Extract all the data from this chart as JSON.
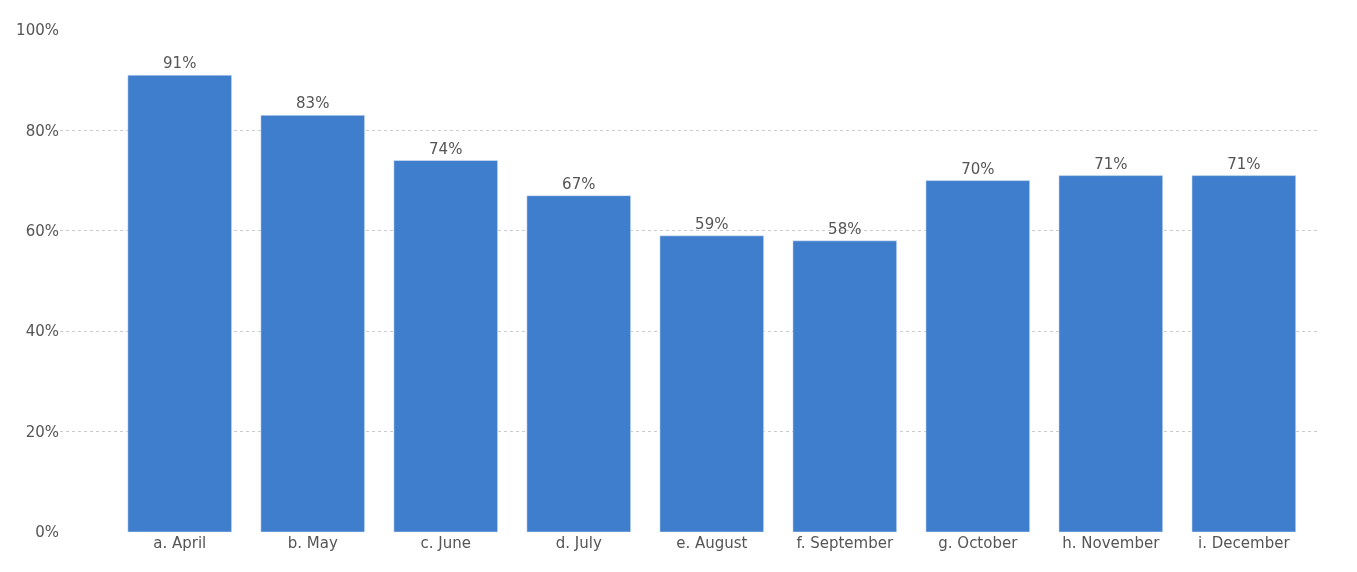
{
  "chart_data": {
    "type": "bar",
    "categories": [
      "a. April",
      "b. May",
      "c. June",
      "d. July",
      "e. August",
      "f. September",
      "g. October",
      "h. November",
      "i. December"
    ],
    "values": [
      91,
      83,
      74,
      67,
      59,
      58,
      70,
      71,
      71
    ],
    "value_labels": [
      "91%",
      "83%",
      "74%",
      "67%",
      "59%",
      "58%",
      "70%",
      "71%",
      "71%"
    ],
    "color": "#3f7ecc",
    "ylim": [
      0,
      100
    ],
    "yticks": [
      {
        "value": 0,
        "label": "0%"
      },
      {
        "value": 20,
        "label": "20%"
      },
      {
        "value": 40,
        "label": "40%"
      },
      {
        "value": 60,
        "label": "60%"
      },
      {
        "value": 80,
        "label": "80%"
      },
      {
        "value": 100,
        "label": "100%"
      }
    ],
    "grid": "y",
    "legend": false
  }
}
